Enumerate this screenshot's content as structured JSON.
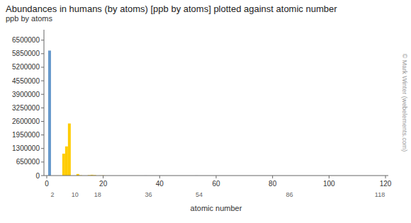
{
  "chart_data": {
    "type": "bar",
    "title": "Abundances in humans (by atoms) [ppb by atoms] plotted against atomic number",
    "x_label": "atomic number",
    "y_label": "ppb by atoms",
    "annotations": [
      "© Mark Winter (webelements.com)"
    ],
    "x": [
      1,
      2,
      3,
      4,
      5,
      6,
      7,
      8,
      9,
      10,
      11,
      12,
      13,
      14,
      15,
      16,
      17,
      18,
      19,
      20,
      21,
      22,
      23,
      24,
      25,
      26,
      27,
      28,
      29,
      30,
      31,
      32,
      33,
      34,
      35,
      36,
      37,
      38,
      39,
      40,
      41,
      42,
      43,
      44,
      45,
      46,
      47,
      48,
      49,
      50,
      51,
      52,
      53,
      54,
      55,
      56,
      57,
      58,
      59,
      60,
      61,
      62,
      63,
      64,
      65,
      66,
      67,
      68,
      69,
      70,
      71,
      72,
      73,
      74,
      75,
      76,
      77,
      78,
      79,
      80,
      81,
      82,
      83,
      84,
      85,
      86,
      87,
      88,
      89,
      90,
      91,
      92,
      93,
      94,
      95,
      96,
      97,
      98,
      99,
      100,
      101,
      102,
      103,
      104,
      105,
      106,
      107,
      108,
      109,
      110,
      111,
      112,
      113,
      114,
      115,
      116,
      117,
      118
    ],
    "values": [
      6000000,
      0,
      0,
      0,
      0,
      1050000,
      1400000,
      2500000,
      0,
      0,
      75000,
      15000,
      0,
      0,
      22000,
      38000,
      24000,
      0,
      4000,
      8000,
      0,
      0,
      0,
      0,
      0,
      700,
      0,
      0,
      0,
      300,
      0,
      0,
      0,
      0,
      1800,
      0,
      0,
      0,
      0,
      0,
      0,
      0,
      0,
      0,
      0,
      0,
      0,
      0,
      0,
      0,
      0,
      0,
      2000,
      0,
      0,
      0,
      0,
      0,
      0,
      0,
      0,
      0,
      0,
      0,
      0,
      0,
      0,
      0,
      0,
      0,
      0,
      0,
      0,
      0,
      0,
      0,
      0,
      0,
      0,
      0,
      0,
      0,
      0,
      0,
      0,
      0,
      0,
      0,
      0,
      0,
      0,
      0,
      0,
      0,
      0,
      0,
      0,
      0,
      0,
      0,
      0,
      0,
      0,
      0,
      0,
      0,
      0,
      0,
      0,
      0,
      0,
      0,
      0,
      0,
      0,
      0,
      0,
      0
    ],
    "colors": [
      "#6699cc",
      "#6699cc",
      "#6699cc",
      "#6699cc",
      "#6699cc",
      "#ffcc00",
      "#ffcc00",
      "#ffcc00",
      "#6699cc",
      "#6699cc",
      "#ffcc00",
      "#ffcc00",
      "#6699cc",
      "#6699cc",
      "#ffcc00",
      "#ffcc00",
      "#ffcc00",
      "#6699cc",
      "#ffcc00",
      "#ffcc00",
      "#6699cc",
      "#6699cc",
      "#6699cc",
      "#6699cc",
      "#6699cc",
      "#ffcc00",
      "#6699cc",
      "#6699cc",
      "#6699cc",
      "#ffcc00",
      "#6699cc",
      "#6699cc",
      "#6699cc",
      "#6699cc",
      "#6699cc",
      "#6699cc",
      "#6699cc",
      "#6699cc",
      "#6699cc",
      "#6699cc",
      "#6699cc",
      "#6699cc",
      "#6699cc",
      "#6699cc",
      "#6699cc",
      "#6699cc",
      "#6699cc",
      "#6699cc",
      "#6699cc",
      "#6699cc",
      "#6699cc",
      "#6699cc",
      "#6699cc",
      "#6699cc",
      "#6699cc",
      "#6699cc",
      "#6699cc",
      "#6699cc",
      "#6699cc",
      "#6699cc",
      "#6699cc",
      "#6699cc",
      "#6699cc",
      "#6699cc",
      "#6699cc",
      "#6699cc",
      "#6699cc",
      "#6699cc",
      "#6699cc",
      "#6699cc",
      "#6699cc",
      "#6699cc",
      "#6699cc",
      "#6699cc",
      "#6699cc",
      "#6699cc",
      "#6699cc",
      "#6699cc",
      "#6699cc",
      "#6699cc",
      "#6699cc",
      "#6699cc",
      "#6699cc",
      "#6699cc",
      "#6699cc",
      "#6699cc",
      "#6699cc",
      "#6699cc",
      "#6699cc",
      "#6699cc",
      "#6699cc",
      "#6699cc",
      "#6699cc",
      "#6699cc",
      "#6699cc",
      "#6699cc",
      "#6699cc",
      "#6699cc",
      "#6699cc",
      "#6699cc",
      "#6699cc",
      "#6699cc",
      "#6699cc",
      "#6699cc",
      "#6699cc",
      "#6699cc",
      "#6699cc",
      "#6699cc",
      "#6699cc",
      "#6699cc",
      "#6699cc",
      "#6699cc",
      "#6699cc",
      "#6699cc",
      "#6699cc",
      "#6699cc",
      "#6699cc",
      "#6699cc"
    ],
    "xlim": [
      -1,
      121
    ],
    "xticks": [
      0,
      20,
      40,
      60,
      80,
      100,
      120
    ],
    "x2lim": [
      -1,
      121
    ],
    "x2ticks": [
      2,
      10,
      18,
      36,
      54,
      86,
      118
    ],
    "ylim": [
      0,
      7000000
    ],
    "yticks": [
      0,
      650000,
      1300000,
      1950000,
      2600000,
      3250000,
      3900000,
      4550000,
      5200000,
      5850000,
      6500000
    ],
    "grid": false
  }
}
